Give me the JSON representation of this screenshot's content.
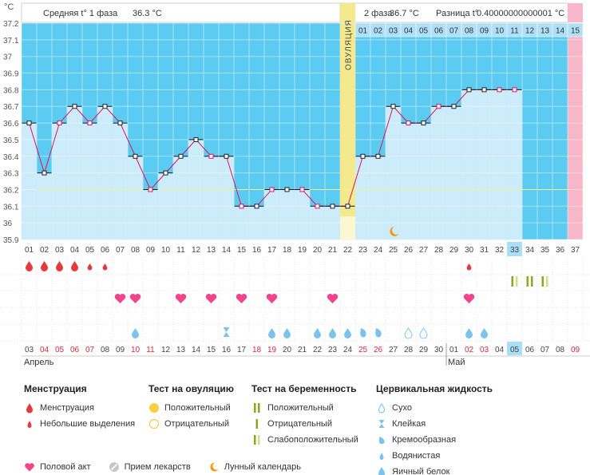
{
  "header": {
    "unit": "°C",
    "phase1": "Средняя t° 1 фаза",
    "phase1_val": "36.3 °C",
    "phase2": "2 фаза",
    "phase2_val": "36.7 °C",
    "diff_label": "Разница t°",
    "diff_val": "0.40000000000001 °C"
  },
  "ovulation_label": "ОВУЛЯЦИЯ",
  "chart_data": {
    "type": "line",
    "ylabel": "°C",
    "ylim": [
      35.9,
      37.2
    ],
    "yticks": [
      "35.9",
      "36",
      "36.1",
      "36.2",
      "36.3",
      "36.4",
      "36.5",
      "36.6",
      "36.7",
      "36.8",
      "36.9",
      "37",
      "37.1",
      "37.2"
    ],
    "cycle_days": [
      "01",
      "02",
      "03",
      "04",
      "05",
      "06",
      "07",
      "08",
      "09",
      "10",
      "11",
      "12",
      "13",
      "14",
      "15",
      "16",
      "17",
      "18",
      "19",
      "20",
      "21",
      "22",
      "23",
      "24",
      "25",
      "26",
      "27",
      "28",
      "29",
      "30",
      "31",
      "32",
      "33",
      "34",
      "35",
      "36",
      "37"
    ],
    "series": [
      {
        "values": [
          36.6,
          36.3,
          36.6,
          36.7,
          36.6,
          36.7,
          36.6,
          36.4,
          36.2,
          36.3,
          36.4,
          36.5,
          36.4,
          36.4,
          36.1,
          36.1,
          36.2,
          36.2,
          36.2,
          36.1,
          36.1,
          36.1,
          36.4,
          36.4,
          36.7,
          36.6,
          36.6,
          36.7,
          36.7,
          36.8,
          36.8,
          36.8,
          36.8
        ]
      }
    ],
    "open_markers_days": [
      3,
      5,
      9,
      13,
      15,
      17,
      19,
      20,
      26,
      28,
      32,
      33
    ],
    "coverline": 36.2,
    "ovulation_day": 22,
    "today_cycle_day": 33,
    "phase2_days_top": [
      "01",
      "02",
      "03",
      "04",
      "05",
      "06",
      "07",
      "08",
      "09",
      "10",
      "11",
      "12",
      "13",
      "14",
      "15"
    ],
    "calendar_days": [
      "03",
      "04",
      "05",
      "06",
      "07",
      "08",
      "09",
      "10",
      "11",
      "12",
      "13",
      "14",
      "15",
      "16",
      "17",
      "18",
      "19",
      "20",
      "21",
      "22",
      "23",
      "24",
      "25",
      "26",
      "27",
      "28",
      "29",
      "30",
      "01",
      "02",
      "03",
      "04",
      "05",
      "06",
      "07",
      "08",
      "09"
    ],
    "red_calendar_days_idx": [
      1,
      2,
      3,
      4,
      7,
      8,
      15,
      16,
      22,
      23,
      29,
      30,
      36
    ],
    "months": [
      "Апрель",
      "Май"
    ],
    "menstruation_big_days": [
      1,
      2,
      3,
      4
    ],
    "menstruation_small_days": [
      5,
      6,
      30
    ],
    "pregnancy_tests_days": [
      33,
      34,
      35
    ],
    "intercourse_days": [
      7,
      8,
      11,
      13,
      15,
      17,
      21,
      30
    ],
    "fluid": {
      "egg_white": [
        8,
        17,
        18,
        20,
        21,
        22,
        30,
        31
      ],
      "sticky": [
        14
      ],
      "creamy": [
        23,
        24
      ],
      "dry": [
        26,
        27
      ]
    },
    "moon_day": 25
  },
  "legend": {
    "menstruation": {
      "title": "Менструация",
      "items": [
        "Менструация",
        "Небольшие выделения"
      ]
    },
    "ovulation_test": {
      "title": "Тест на овуляцию",
      "items": [
        "Положительный",
        "Отрицательный"
      ]
    },
    "pregnancy_test": {
      "title": "Тест на беременность",
      "items": [
        "Положительный",
        "Отрицательный",
        "Слабоположительный"
      ]
    },
    "cervical": {
      "title": "Цервикальная жидкость",
      "items": [
        "Сухо",
        "Клейкая",
        "Кремообразная",
        "Водянистая",
        "Яичный белок"
      ]
    },
    "bottom": [
      "Половой акт",
      "Прием лекарств",
      "Лунный календарь"
    ]
  },
  "colors": {
    "sky": "#5ccbf2",
    "bar": "#ccecfb",
    "bar_border": "#86cdeb",
    "line": "#e0115f",
    "ovulation": "#f4e98c",
    "pink": "#f7b6c9",
    "today": "#a9def7",
    "blood": "#e33a3a",
    "heart": "#f0458b",
    "drop": "#7bc3ec",
    "green": "#a8c83a"
  }
}
